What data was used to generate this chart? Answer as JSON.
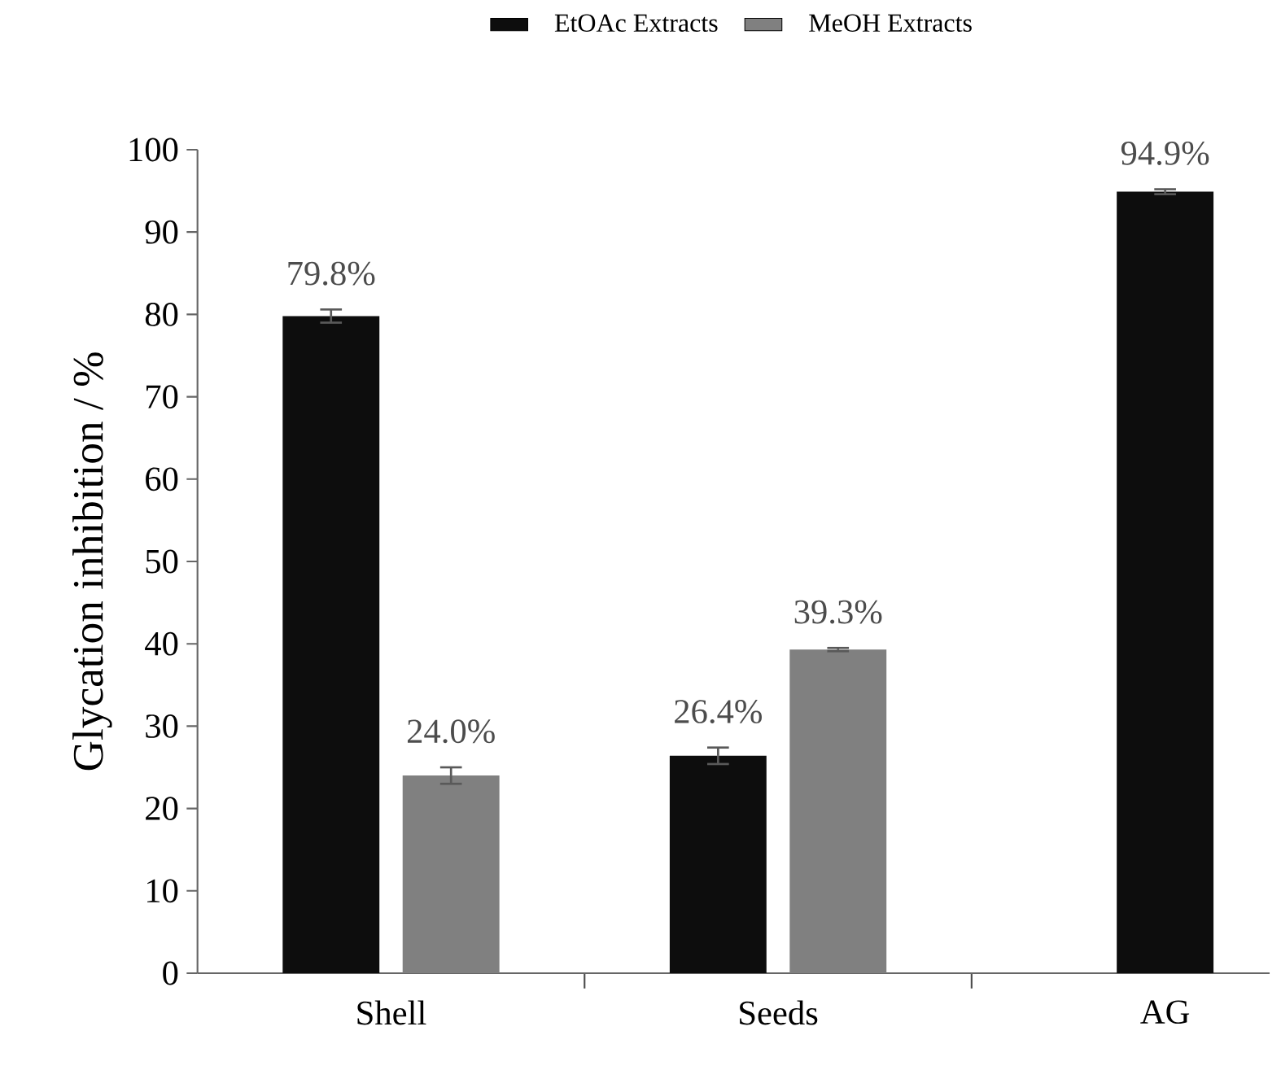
{
  "chart_data": {
    "type": "bar",
    "ylabel": "Glycation inhibition / %",
    "categories": [
      "Shell",
      "Seeds",
      "AG"
    ],
    "series": [
      {
        "name": "EtOAc Extracts",
        "color": "#0d0d0d",
        "values": [
          79.8,
          26.4,
          94.9
        ],
        "errors": [
          0.8,
          1.0,
          0.3
        ],
        "value_labels": [
          "79.8%",
          "26.4%",
          "94.9%"
        ]
      },
      {
        "name": "MeOH Extracts",
        "color": "#808080",
        "values": [
          24.0,
          39.3,
          null
        ],
        "errors": [
          1.0,
          0.2,
          null
        ],
        "value_labels": [
          "24.0%",
          "39.3%",
          null
        ]
      }
    ],
    "ylim": [
      0,
      100
    ],
    "yticks": [
      0,
      10,
      20,
      30,
      40,
      50,
      60,
      70,
      80,
      90,
      100
    ],
    "grid": false,
    "legend": "top"
  }
}
